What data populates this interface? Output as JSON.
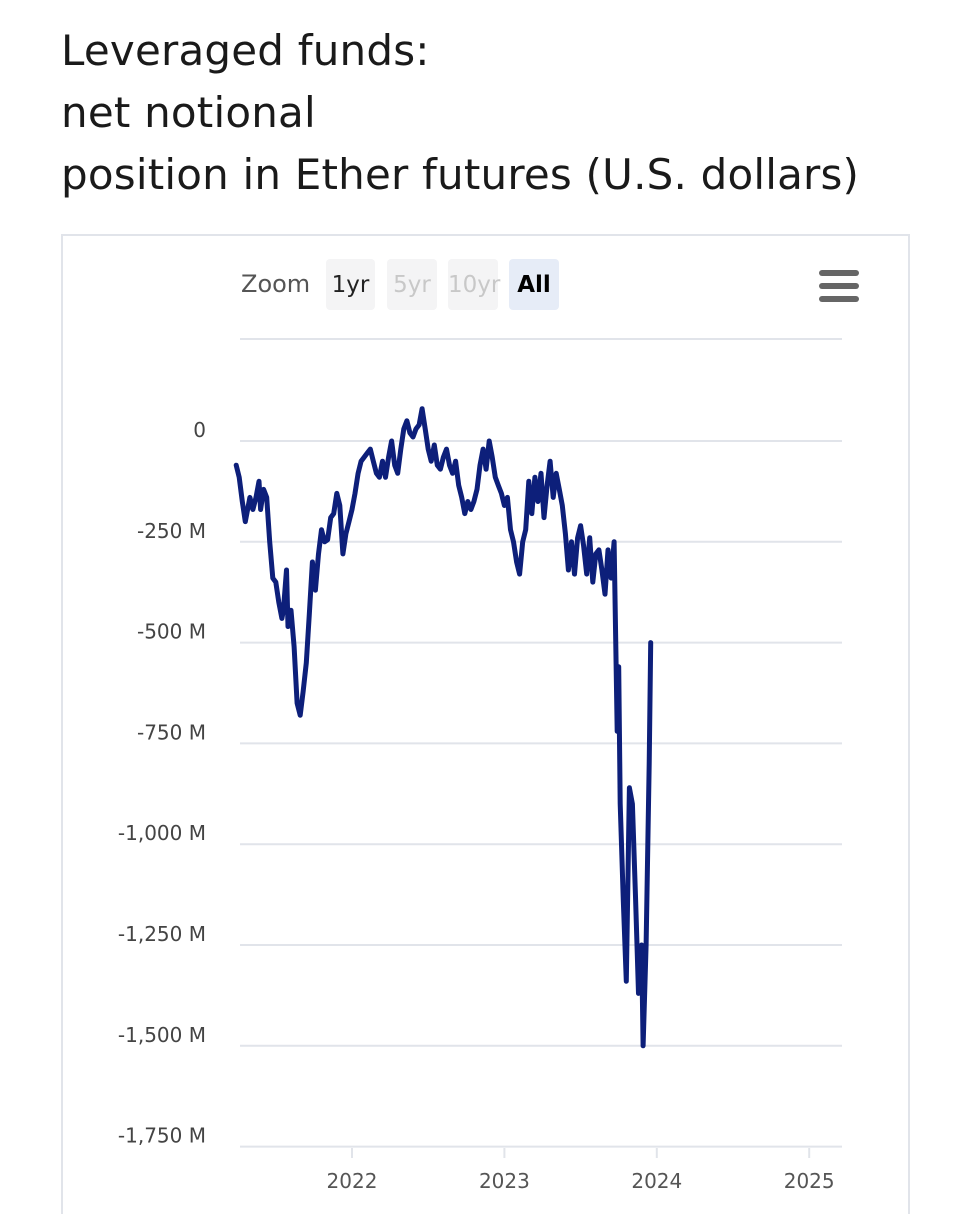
{
  "title": {
    "line1": "Leveraged funds:",
    "line2": "net notional",
    "line3": "position in Ether futures (U.S. dollars)"
  },
  "zoom": {
    "label": "Zoom",
    "buttons": [
      {
        "label": "1yr",
        "state": "enabled"
      },
      {
        "label": "5yr",
        "state": "disabled"
      },
      {
        "label": "10yr",
        "state": "disabled"
      },
      {
        "label": "All",
        "state": "active"
      }
    ]
  },
  "menu_icon": "hamburger-menu-icon",
  "colors": {
    "series": "#0d1f7a",
    "grid": "#e1e4ea"
  },
  "chart_data": {
    "type": "line",
    "title": "Leveraged funds: net notional position in Ether futures (U.S. dollars)",
    "xlabel": "",
    "ylabel": "",
    "x_range": [
      2021.24,
      2025.22
    ],
    "ylim": [
      -1750,
      250
    ],
    "y_ticks": [
      0,
      -250,
      -500,
      -750,
      -1000,
      -1250,
      -1500,
      -1750
    ],
    "y_tick_labels": [
      "0",
      "-250 M",
      "-500 M",
      "-750 M",
      "-1,000 M",
      "-1,250 M",
      "-1,500 M",
      "-1,750 M"
    ],
    "x_ticks": [
      2022,
      2023,
      2024,
      2025
    ],
    "x_tick_labels": [
      "2022",
      "2023",
      "2024",
      "2025"
    ],
    "grid": true,
    "legend": "none",
    "series": [
      {
        "unit": "millions USD",
        "points": [
          [
            2021.24,
            -60
          ],
          [
            2021.26,
            -90
          ],
          [
            2021.28,
            -150
          ],
          [
            2021.3,
            -200
          ],
          [
            2021.33,
            -140
          ],
          [
            2021.35,
            -170
          ],
          [
            2021.37,
            -140
          ],
          [
            2021.39,
            -100
          ],
          [
            2021.4,
            -170
          ],
          [
            2021.42,
            -120
          ],
          [
            2021.44,
            -140
          ],
          [
            2021.46,
            -250
          ],
          [
            2021.48,
            -340
          ],
          [
            2021.5,
            -350
          ],
          [
            2021.52,
            -400
          ],
          [
            2021.54,
            -440
          ],
          [
            2021.55,
            -420
          ],
          [
            2021.57,
            -320
          ],
          [
            2021.58,
            -460
          ],
          [
            2021.6,
            -420
          ],
          [
            2021.62,
            -510
          ],
          [
            2021.64,
            -650
          ],
          [
            2021.66,
            -680
          ],
          [
            2021.68,
            -620
          ],
          [
            2021.7,
            -550
          ],
          [
            2021.72,
            -430
          ],
          [
            2021.74,
            -300
          ],
          [
            2021.76,
            -370
          ],
          [
            2021.78,
            -280
          ],
          [
            2021.8,
            -220
          ],
          [
            2021.82,
            -250
          ],
          [
            2021.84,
            -245
          ],
          [
            2021.86,
            -190
          ],
          [
            2021.88,
            -180
          ],
          [
            2021.9,
            -130
          ],
          [
            2021.92,
            -160
          ],
          [
            2021.94,
            -280
          ],
          [
            2021.96,
            -230
          ],
          [
            2021.98,
            -200
          ],
          [
            2022.0,
            -170
          ],
          [
            2022.02,
            -130
          ],
          [
            2022.04,
            -80
          ],
          [
            2022.06,
            -50
          ],
          [
            2022.08,
            -40
          ],
          [
            2022.1,
            -30
          ],
          [
            2022.12,
            -20
          ],
          [
            2022.14,
            -50
          ],
          [
            2022.16,
            -80
          ],
          [
            2022.18,
            -90
          ],
          [
            2022.2,
            -50
          ],
          [
            2022.22,
            -90
          ],
          [
            2022.24,
            -40
          ],
          [
            2022.26,
            0
          ],
          [
            2022.28,
            -60
          ],
          [
            2022.3,
            -80
          ],
          [
            2022.32,
            -20
          ],
          [
            2022.34,
            30
          ],
          [
            2022.36,
            50
          ],
          [
            2022.38,
            20
          ],
          [
            2022.4,
            10
          ],
          [
            2022.42,
            30
          ],
          [
            2022.44,
            40
          ],
          [
            2022.46,
            80
          ],
          [
            2022.48,
            30
          ],
          [
            2022.5,
            -20
          ],
          [
            2022.52,
            -50
          ],
          [
            2022.54,
            -10
          ],
          [
            2022.56,
            -60
          ],
          [
            2022.58,
            -70
          ],
          [
            2022.6,
            -40
          ],
          [
            2022.62,
            -20
          ],
          [
            2022.64,
            -60
          ],
          [
            2022.66,
            -80
          ],
          [
            2022.68,
            -50
          ],
          [
            2022.7,
            -110
          ],
          [
            2022.72,
            -140
          ],
          [
            2022.74,
            -180
          ],
          [
            2022.76,
            -150
          ],
          [
            2022.78,
            -170
          ],
          [
            2022.8,
            -150
          ],
          [
            2022.82,
            -120
          ],
          [
            2022.84,
            -60
          ],
          [
            2022.86,
            -20
          ],
          [
            2022.88,
            -70
          ],
          [
            2022.9,
            0
          ],
          [
            2022.92,
            -40
          ],
          [
            2022.94,
            -90
          ],
          [
            2022.96,
            -110
          ],
          [
            2022.98,
            -130
          ],
          [
            2023.0,
            -160
          ],
          [
            2023.02,
            -140
          ],
          [
            2023.04,
            -220
          ],
          [
            2023.06,
            -250
          ],
          [
            2023.08,
            -300
          ],
          [
            2023.1,
            -330
          ],
          [
            2023.12,
            -250
          ],
          [
            2023.14,
            -220
          ],
          [
            2023.16,
            -100
          ],
          [
            2023.18,
            -180
          ],
          [
            2023.2,
            -90
          ],
          [
            2023.22,
            -150
          ],
          [
            2023.24,
            -80
          ],
          [
            2023.26,
            -190
          ],
          [
            2023.28,
            -110
          ],
          [
            2023.3,
            -50
          ],
          [
            2023.32,
            -140
          ],
          [
            2023.34,
            -80
          ],
          [
            2023.36,
            -120
          ],
          [
            2023.38,
            -160
          ],
          [
            2023.4,
            -230
          ],
          [
            2023.42,
            -320
          ],
          [
            2023.44,
            -250
          ],
          [
            2023.46,
            -330
          ],
          [
            2023.48,
            -240
          ],
          [
            2023.5,
            -210
          ],
          [
            2023.52,
            -260
          ],
          [
            2023.54,
            -330
          ],
          [
            2023.56,
            -240
          ],
          [
            2023.58,
            -350
          ],
          [
            2023.6,
            -280
          ],
          [
            2023.62,
            -270
          ],
          [
            2023.64,
            -320
          ],
          [
            2023.66,
            -380
          ],
          [
            2023.68,
            -270
          ],
          [
            2023.7,
            -340
          ],
          [
            2023.72,
            -250
          ],
          [
            2023.74,
            -720
          ],
          [
            2023.75,
            -560
          ],
          [
            2023.76,
            -900
          ],
          [
            2023.78,
            -1140
          ],
          [
            2023.8,
            -1340
          ],
          [
            2023.82,
            -860
          ],
          [
            2023.84,
            -900
          ],
          [
            2023.86,
            -1130
          ],
          [
            2023.88,
            -1370
          ],
          [
            2023.9,
            -1250
          ],
          [
            2023.91,
            -1500
          ],
          [
            2023.93,
            -1250
          ],
          [
            2023.95,
            -800
          ],
          [
            2023.96,
            -500
          ]
        ]
      }
    ]
  }
}
